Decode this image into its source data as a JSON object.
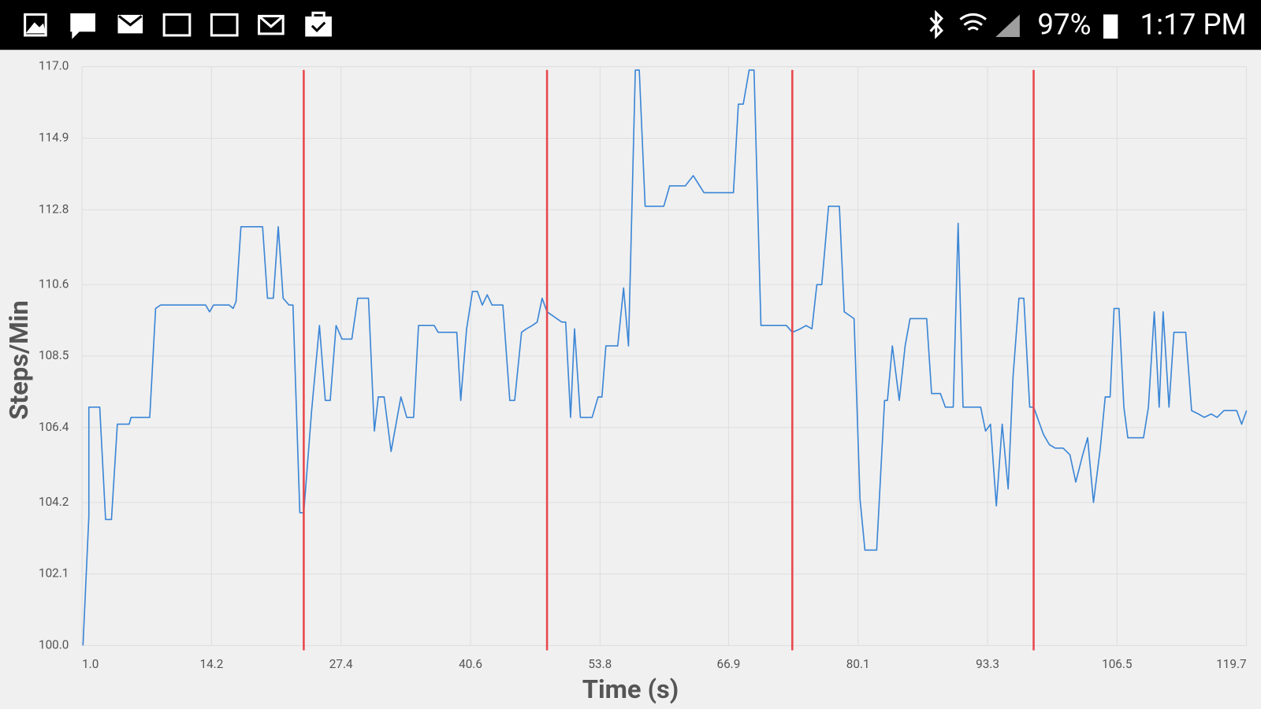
{
  "status_bar": {
    "battery": "97%",
    "time": "1:17 PM"
  },
  "chart_data": {
    "type": "line",
    "y_label": "Steps/Min",
    "x_label": "Time (s)",
    "color": "#3b86d6",
    "grid": true,
    "xlim": [
      1,
      119.7
    ],
    "ylim": [
      100,
      117
    ],
    "xticks": [
      {
        "value": 1,
        "label": "1.0"
      },
      14.2,
      27.4,
      40.6,
      53.8,
      66.9,
      80.1,
      93.3,
      106.5,
      119.7
    ],
    "yticks": [
      {
        "value": 100,
        "label": "100.0"
      },
      102.1,
      104.2,
      106.4,
      108.5,
      110.6,
      112.8,
      114.9,
      {
        "value": 117,
        "label": "117.0"
      }
    ],
    "markers": {
      "color": "#e8474c",
      "x": [
        23.6,
        48.4,
        73.4,
        98.0
      ]
    },
    "x": [
      1.1,
      1.7,
      1.7,
      2.8,
      3.4,
      4.0,
      4.6,
      5.8,
      6.0,
      7.9,
      8.5,
      9.0,
      13.6,
      14.0,
      14.4,
      16.0,
      16.4,
      16.7,
      17.2,
      19.4,
      19.9,
      20.5,
      21.0,
      21.5,
      22.1,
      22.5,
      23.2,
      23.6,
      24.4,
      25.2,
      25.8,
      26.3,
      26.9,
      27.5,
      28.5,
      29.1,
      30.2,
      30.8,
      31.2,
      31.8,
      32.5,
      33.5,
      34.1,
      34.8,
      35.3,
      36.9,
      37.3,
      39.2,
      39.6,
      40.2,
      40.8,
      41.3,
      41.8,
      42.3,
      42.8,
      43.9,
      44.6,
      45.1,
      45.8,
      46.3,
      46.9,
      47.4,
      47.9,
      48.4,
      49.9,
      50.3,
      50.8,
      51.2,
      51.8,
      53.0,
      53.6,
      54.0,
      54.4,
      55.6,
      56.2,
      56.7,
      57.4,
      57.8,
      58.4,
      60.3,
      60.9,
      62.5,
      63.3,
      64.4,
      67.4,
      67.9,
      68.4,
      69.0,
      69.5,
      70.2,
      72.8,
      73.4,
      74.2,
      74.8,
      75.4,
      75.9,
      76.4,
      77.1,
      78.2,
      78.7,
      79.7,
      80.3,
      80.8,
      82.0,
      82.8,
      83.1,
      83.6,
      84.3,
      84.9,
      85.4,
      87.1,
      87.6,
      88.5,
      89.0,
      89.8,
      90.3,
      90.8,
      92.6,
      93.1,
      93.6,
      94.2,
      94.8,
      95.4,
      95.9,
      96.5,
      97.0,
      97.6,
      98.0,
      99.0,
      99.6,
      100.2,
      101.0,
      101.7,
      102.3,
      103.0,
      103.5,
      104.1,
      104.8,
      105.3,
      105.8,
      106.2,
      106.7,
      107.2,
      107.6,
      109.2,
      109.7,
      110.3,
      110.8,
      111.2,
      111.8,
      112.3,
      113.5,
      114.1,
      114.8,
      115.4,
      116.1,
      116.7,
      117.4,
      118.7,
      119.2,
      119.7
    ],
    "values": [
      100.0,
      103.8,
      107.0,
      107.0,
      103.7,
      103.7,
      106.5,
      106.5,
      106.7,
      106.7,
      109.9,
      110.0,
      110.0,
      109.8,
      110.0,
      110.0,
      109.9,
      110.1,
      112.3,
      112.3,
      110.2,
      110.2,
      112.3,
      110.2,
      110.0,
      110.0,
      103.9,
      103.9,
      106.9,
      109.4,
      107.2,
      107.2,
      109.4,
      109.0,
      109.0,
      110.2,
      110.2,
      106.3,
      107.3,
      107.3,
      105.7,
      107.3,
      106.7,
      106.7,
      109.4,
      109.4,
      109.2,
      109.2,
      107.2,
      109.3,
      110.4,
      110.4,
      110.0,
      110.3,
      110.0,
      110.0,
      107.2,
      107.2,
      109.2,
      109.3,
      109.4,
      109.5,
      110.2,
      109.8,
      109.5,
      109.5,
      106.7,
      109.3,
      106.7,
      106.7,
      107.3,
      107.3,
      108.8,
      108.8,
      110.5,
      108.8,
      116.9,
      116.9,
      112.9,
      112.9,
      113.5,
      113.5,
      113.8,
      113.3,
      113.3,
      115.9,
      115.9,
      116.9,
      116.9,
      109.4,
      109.4,
      109.2,
      109.3,
      109.4,
      109.3,
      110.6,
      110.6,
      112.9,
      112.9,
      109.8,
      109.6,
      104.3,
      102.8,
      102.8,
      107.2,
      107.2,
      108.8,
      107.2,
      108.8,
      109.6,
      109.6,
      107.4,
      107.4,
      107.0,
      107.0,
      112.4,
      107.0,
      107.0,
      106.3,
      106.5,
      104.1,
      106.5,
      104.6,
      107.9,
      110.2,
      110.2,
      107.0,
      107.0,
      106.2,
      105.9,
      105.8,
      105.8,
      105.6,
      104.8,
      105.6,
      106.1,
      104.2,
      105.8,
      107.3,
      107.3,
      109.9,
      109.9,
      107.0,
      106.1,
      106.1,
      107.0,
      109.8,
      107.0,
      109.8,
      107.0,
      109.2,
      109.2,
      106.9,
      106.8,
      106.7,
      106.8,
      106.7,
      106.9,
      106.9,
      106.5,
      106.9
    ]
  }
}
